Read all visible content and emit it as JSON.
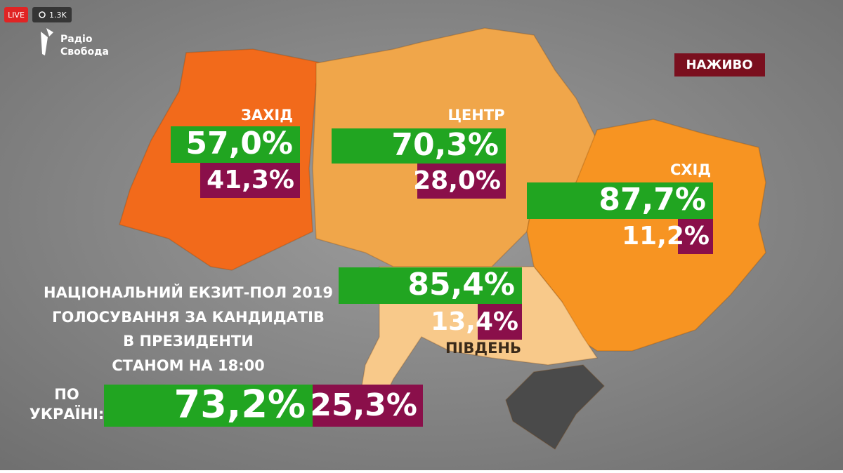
{
  "overlay": {
    "live": "LIVE",
    "views": "1.3K",
    "logo": [
      "Радіо",
      "Свобода"
    ]
  },
  "badge": "НАЖИВО",
  "regions": [
    {
      "name": "ЗАХІД",
      "green": "57,0%",
      "purple": "41,3%"
    },
    {
      "name": "ЦЕНТР",
      "green": "70,3%",
      "purple": "28,0%"
    },
    {
      "name": "СХІД",
      "green": "87,7%",
      "purple": "11,2%"
    },
    {
      "name": "ПІВДЕНЬ",
      "green": "85,4%",
      "purple": "13,4%"
    }
  ],
  "title": [
    "НАЦІОНАЛЬНИЙ ЕКЗИТ-ПОЛ 2019",
    "ГОЛОСУВАННЯ ЗА КАНДИДАТІВ",
    "В ПРЕЗИДЕНТИ"
  ],
  "time": "СТАНОМ НА 18:00",
  "national": {
    "label": [
      "ПО",
      "УКРАЇНІ:"
    ],
    "green": "73,2%",
    "purple": "25,3%"
  }
}
